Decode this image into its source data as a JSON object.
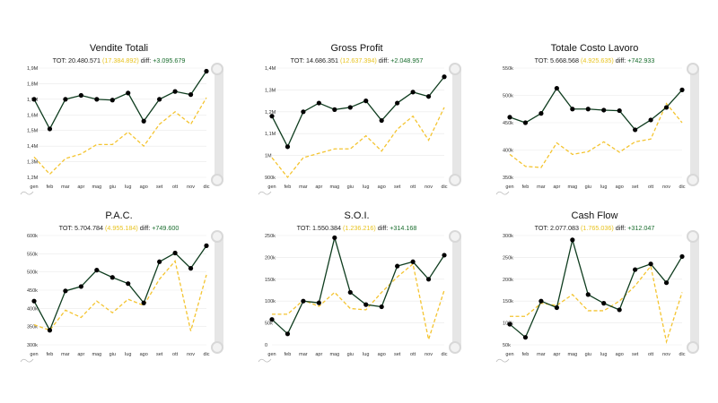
{
  "colors": {
    "current": "#0f3d1f",
    "previous": "#f4c430",
    "diff": "#1a6d2e"
  },
  "charts": [
    {
      "title": "Vendite Totali",
      "tot_label": "TOT:",
      "tot": "20.480.571",
      "prev_tot": "(17.384.892)",
      "diff_label": "diff:",
      "diff": "+3.095.679",
      "chart_data": {
        "type": "line",
        "categories": [
          "gen",
          "feb",
          "mar",
          "apr",
          "mag",
          "giu",
          "lug",
          "ago",
          "set",
          "ott",
          "nov",
          "dic"
        ],
        "ylim": [
          1200000,
          1900000
        ],
        "yticks": [
          "1,2M",
          "1,3M",
          "1,4M",
          "1,5M",
          "1,6M",
          "1,7M",
          "1,8M",
          "1,9M"
        ],
        "series": [
          {
            "values": [
              1700000,
              1510000,
              1700000,
              1725000,
              1700000,
              1695000,
              1740000,
              1560000,
              1700000,
              1750000,
              1730000,
              1880000
            ]
          },
          {
            "values": [
              1330000,
              1220000,
              1320000,
              1350000,
              1410000,
              1410000,
              1490000,
              1400000,
              1540000,
              1620000,
              1540000,
              1710000
            ]
          }
        ]
      }
    },
    {
      "title": "Gross Profit",
      "tot_label": "TOT:",
      "tot": "14.686.351",
      "prev_tot": "(12.637.394)",
      "diff_label": "diff:",
      "diff": "+2.048.957",
      "chart_data": {
        "type": "line",
        "categories": [
          "gen",
          "feb",
          "mar",
          "apr",
          "mag",
          "giu",
          "lug",
          "ago",
          "set",
          "ott",
          "nov",
          "dic"
        ],
        "ylim": [
          900000,
          1400000
        ],
        "yticks": [
          "900k",
          "1M",
          "1,1M",
          "1,2M",
          "1,3M",
          "1,4M"
        ],
        "series": [
          {
            "values": [
              1180000,
              1040000,
              1200000,
              1240000,
              1210000,
              1220000,
              1250000,
              1160000,
              1240000,
              1290000,
              1270000,
              1360000
            ]
          },
          {
            "values": [
              990000,
              900000,
              990000,
              1010000,
              1030000,
              1030000,
              1090000,
              1020000,
              1120000,
              1180000,
              1070000,
              1220000
            ]
          }
        ]
      }
    },
    {
      "title": "Totale Costo Lavoro",
      "tot_label": "TOT:",
      "tot": "5.668.568",
      "prev_tot": "(4.925.635)",
      "diff_label": "diff:",
      "diff": "+742.933",
      "chart_data": {
        "type": "line",
        "categories": [
          "gen",
          "feb",
          "mar",
          "apr",
          "mag",
          "giu",
          "lug",
          "ago",
          "set",
          "ott",
          "nov",
          "dic"
        ],
        "ylim": [
          350000,
          550000
        ],
        "yticks": [
          "350k",
          "400k",
          "450k",
          "500k",
          "550k"
        ],
        "series": [
          {
            "values": [
              460000,
              450000,
              467000,
              513000,
              475000,
              475000,
              473000,
              472000,
              437000,
              455000,
              478000,
              510000
            ]
          },
          {
            "values": [
              392000,
              370000,
              368000,
              413000,
              392000,
              397000,
              415000,
              396000,
              415000,
              420000,
              485000,
              450000
            ]
          }
        ]
      }
    },
    {
      "title": "P.A.C.",
      "tot_label": "TOT:",
      "tot": "5.704.784",
      "prev_tot": "(4.955.184)",
      "diff_label": "diff:",
      "diff": "+749.600",
      "chart_data": {
        "type": "line",
        "categories": [
          "gen",
          "feb",
          "mar",
          "apr",
          "mag",
          "giu",
          "lug",
          "ago",
          "set",
          "ott",
          "nov",
          "dic"
        ],
        "ylim": [
          300000,
          600000
        ],
        "yticks": [
          "300k",
          "350k",
          "400k",
          "450k",
          "500k",
          "550k",
          "600k"
        ],
        "series": [
          {
            "values": [
              420000,
              340000,
              448000,
              460000,
              505000,
              485000,
              468000,
              415000,
              528000,
              552000,
              510000,
              572000
            ]
          },
          {
            "values": [
              355000,
              340000,
              395000,
              375000,
              420000,
              388000,
              425000,
              408000,
              480000,
              530000,
              338000,
              492000
            ]
          }
        ]
      }
    },
    {
      "title": "S.O.I.",
      "tot_label": "TOT:",
      "tot": "1.550.384",
      "prev_tot": "(1.236.216)",
      "diff_label": "diff:",
      "diff": "+314.168",
      "chart_data": {
        "type": "line",
        "categories": [
          "gen",
          "feb",
          "mar",
          "apr",
          "mag",
          "giu",
          "lug",
          "ago",
          "set",
          "ott",
          "nov",
          "dic"
        ],
        "ylim": [
          0,
          250000
        ],
        "yticks": [
          "0",
          "50k",
          "100k",
          "150k",
          "200k",
          "250k"
        ],
        "series": [
          {
            "values": [
              58000,
              25000,
              100000,
              96000,
              245000,
              120000,
              92000,
              87000,
              180000,
              190000,
              150000,
              205000
            ]
          },
          {
            "values": [
              70000,
              70000,
              102000,
              88000,
              120000,
              83000,
              80000,
              120000,
              155000,
              185000,
              12000,
              125000
            ]
          }
        ]
      }
    },
    {
      "title": "Cash Flow",
      "tot_label": "TOT:",
      "tot": "2.077.083",
      "prev_tot": "(1.765.036)",
      "diff_label": "diff:",
      "diff": "+312.047",
      "chart_data": {
        "type": "line",
        "categories": [
          "gen",
          "feb",
          "mar",
          "apr",
          "mag",
          "giu",
          "lug",
          "ago",
          "set",
          "ott",
          "nov",
          "dic"
        ],
        "ylim": [
          50000,
          300000
        ],
        "yticks": [
          "50k",
          "100k",
          "150k",
          "200k",
          "250k",
          "300k"
        ],
        "series": [
          {
            "values": [
              97000,
              67000,
              150000,
              135000,
              290000,
              165000,
              145000,
              130000,
              222000,
              235000,
              192000,
              252000
            ]
          },
          {
            "values": [
              115000,
              115000,
              145000,
              140000,
              165000,
              128000,
              128000,
              150000,
              185000,
              230000,
              57000,
              170000
            ]
          }
        ]
      }
    }
  ]
}
